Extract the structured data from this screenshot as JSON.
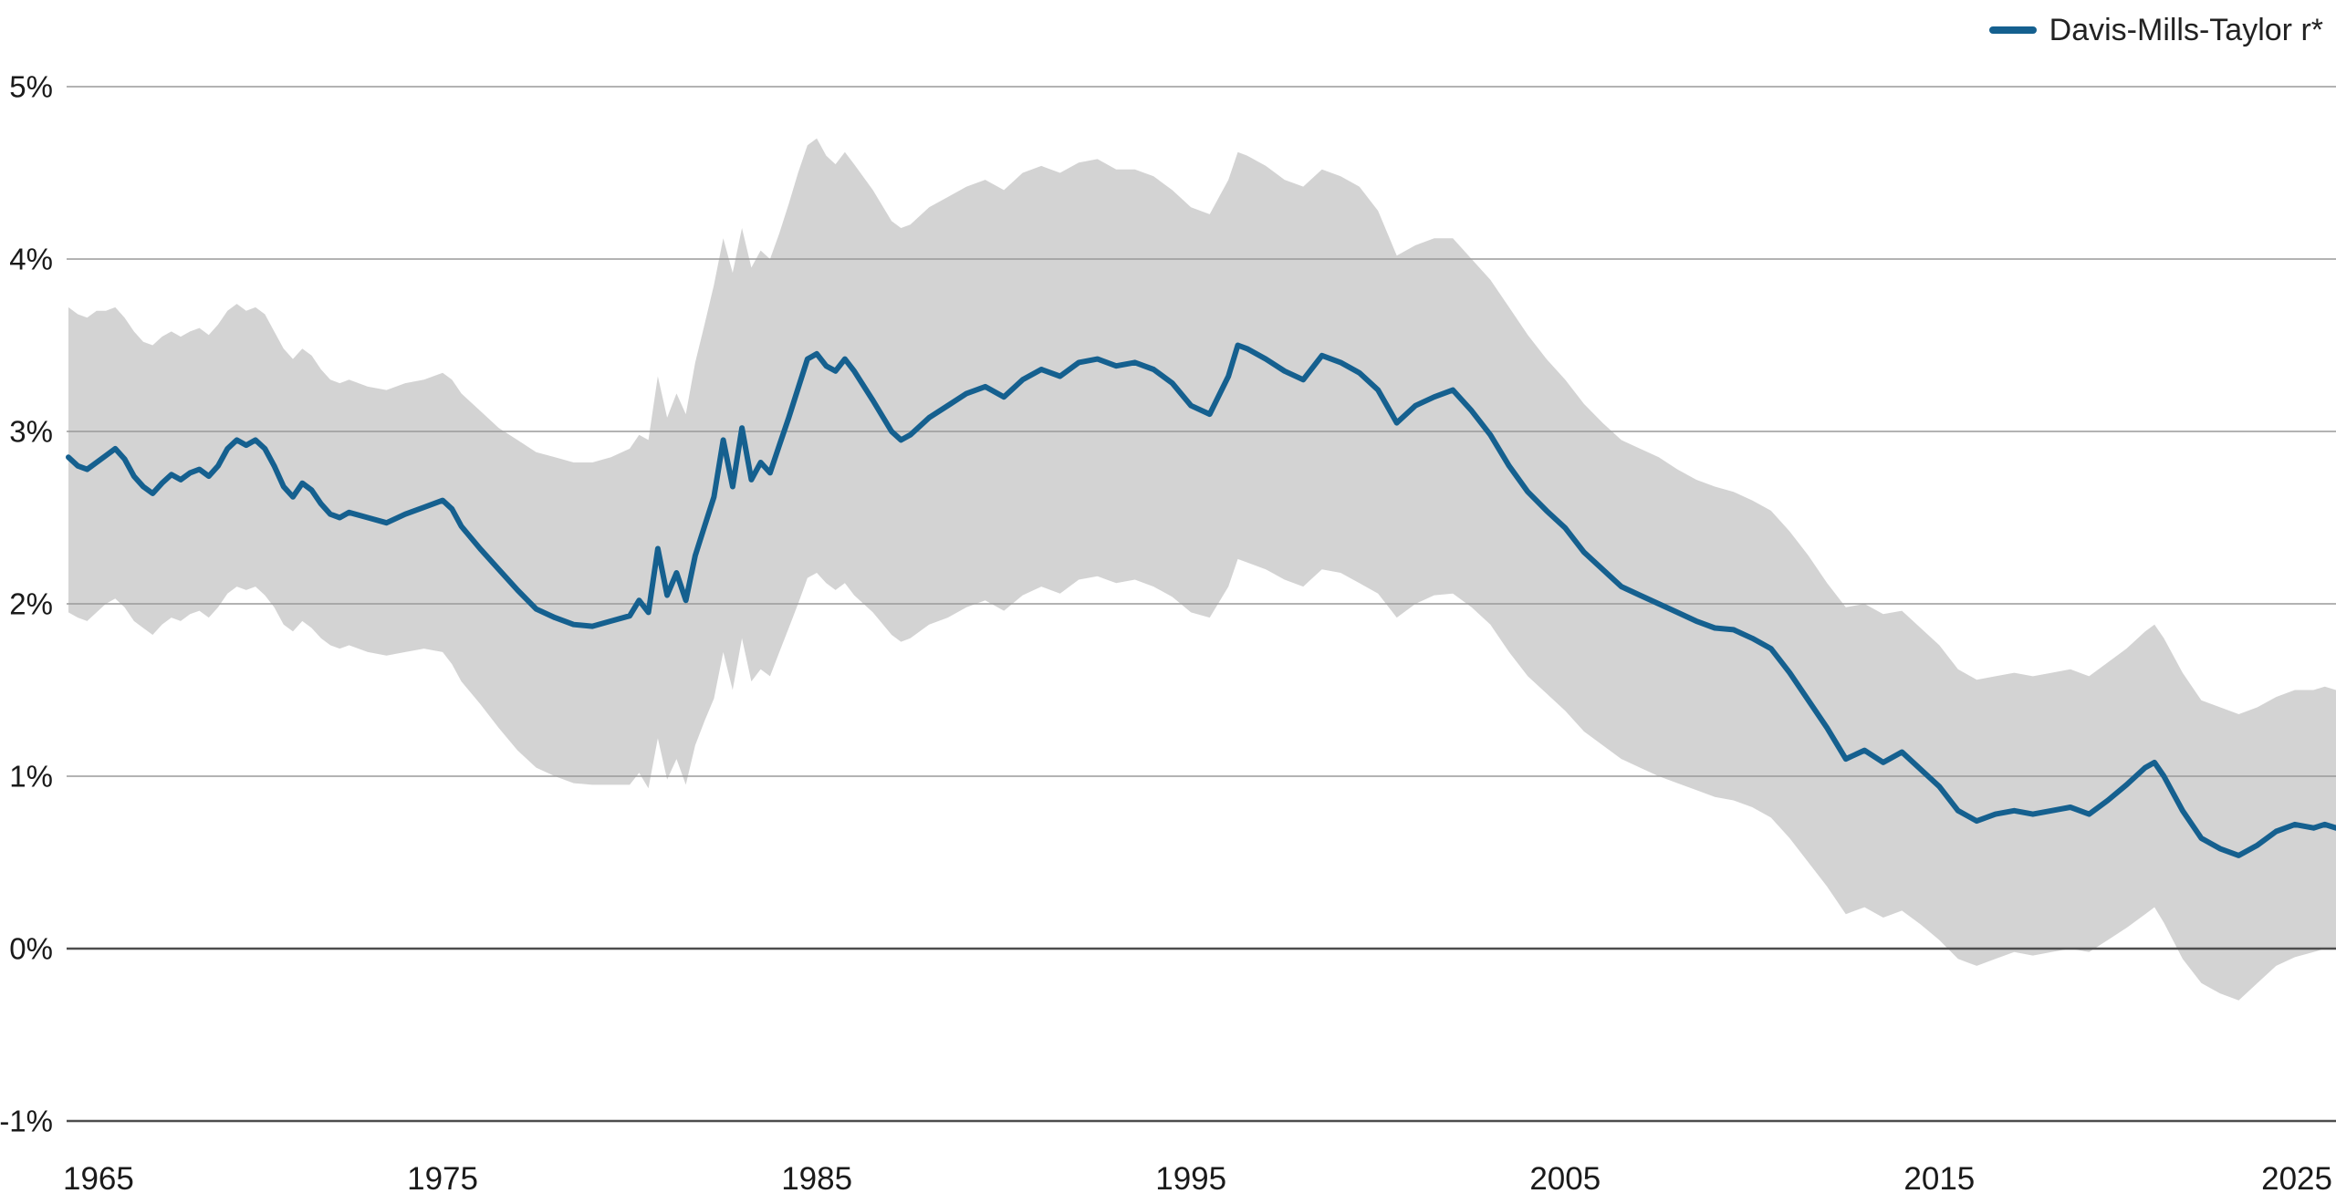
{
  "chart_data": {
    "type": "line",
    "title": "",
    "xlabel": "",
    "ylabel": "",
    "legend_position": "top-right",
    "grid": "horizontal",
    "legend": [
      {
        "label": "Davis-Mills-Taylor r*",
        "color": "#15608f"
      }
    ],
    "y_ticks": [
      "5%",
      "4%",
      "3%",
      "2%",
      "1%",
      "0%",
      "-1%"
    ],
    "y_tick_values": [
      5,
      4,
      3,
      2,
      1,
      0,
      -1
    ],
    "x_ticks": [
      1965,
      1975,
      1985,
      1995,
      2005,
      2015,
      2025
    ],
    "xlim": [
      1965,
      2025.6
    ],
    "ylim": [
      -1,
      5
    ],
    "band_color": "#d3d3d3",
    "band_name": "confidence-band",
    "series": [
      {
        "name": "Davis-Mills-Taylor r*",
        "color": "#15608f",
        "points_format": [
          "year",
          "value_pct",
          "band_lower_pct",
          "band_upper_pct"
        ],
        "points": [
          [
            1965.0,
            2.85,
            1.95,
            3.72
          ],
          [
            1965.25,
            2.8,
            1.92,
            3.68
          ],
          [
            1965.5,
            2.78,
            1.9,
            3.66
          ],
          [
            1965.75,
            2.82,
            1.95,
            3.7
          ],
          [
            1966.0,
            2.86,
            2.0,
            3.7
          ],
          [
            1966.25,
            2.9,
            2.03,
            3.72
          ],
          [
            1966.5,
            2.84,
            1.98,
            3.66
          ],
          [
            1966.75,
            2.74,
            1.9,
            3.58
          ],
          [
            1967.0,
            2.68,
            1.86,
            3.52
          ],
          [
            1967.25,
            2.64,
            1.82,
            3.5
          ],
          [
            1967.5,
            2.7,
            1.88,
            3.55
          ],
          [
            1967.75,
            2.75,
            1.92,
            3.58
          ],
          [
            1968.0,
            2.72,
            1.9,
            3.55
          ],
          [
            1968.25,
            2.76,
            1.94,
            3.58
          ],
          [
            1968.5,
            2.78,
            1.96,
            3.6
          ],
          [
            1968.75,
            2.74,
            1.92,
            3.56
          ],
          [
            1969.0,
            2.8,
            1.98,
            3.62
          ],
          [
            1969.25,
            2.9,
            2.06,
            3.7
          ],
          [
            1969.5,
            2.95,
            2.1,
            3.74
          ],
          [
            1969.75,
            2.92,
            2.08,
            3.7
          ],
          [
            1970.0,
            2.95,
            2.1,
            3.72
          ],
          [
            1970.25,
            2.9,
            2.05,
            3.68
          ],
          [
            1970.5,
            2.8,
            1.98,
            3.58
          ],
          [
            1970.75,
            2.68,
            1.88,
            3.48
          ],
          [
            1971.0,
            2.62,
            1.84,
            3.42
          ],
          [
            1971.25,
            2.7,
            1.9,
            3.48
          ],
          [
            1971.5,
            2.66,
            1.86,
            3.44
          ],
          [
            1971.75,
            2.58,
            1.8,
            3.36
          ],
          [
            1972.0,
            2.52,
            1.76,
            3.3
          ],
          [
            1972.25,
            2.5,
            1.74,
            3.28
          ],
          [
            1972.5,
            2.53,
            1.76,
            3.3
          ],
          [
            1973.0,
            2.5,
            1.72,
            3.26
          ],
          [
            1973.5,
            2.47,
            1.7,
            3.24
          ],
          [
            1974.0,
            2.52,
            1.72,
            3.28
          ],
          [
            1974.5,
            2.56,
            1.74,
            3.3
          ],
          [
            1975.0,
            2.6,
            1.72,
            3.34
          ],
          [
            1975.25,
            2.55,
            1.65,
            3.3
          ],
          [
            1975.5,
            2.45,
            1.55,
            3.22
          ],
          [
            1976.0,
            2.32,
            1.42,
            3.12
          ],
          [
            1976.5,
            2.2,
            1.28,
            3.02
          ],
          [
            1977.0,
            2.08,
            1.15,
            2.95
          ],
          [
            1977.5,
            1.97,
            1.05,
            2.88
          ],
          [
            1978.0,
            1.92,
            1.0,
            2.85
          ],
          [
            1978.5,
            1.88,
            0.96,
            2.82
          ],
          [
            1979.0,
            1.87,
            0.95,
            2.82
          ],
          [
            1979.5,
            1.9,
            0.95,
            2.85
          ],
          [
            1980.0,
            1.93,
            0.95,
            2.9
          ],
          [
            1980.25,
            2.02,
            1.02,
            2.98
          ],
          [
            1980.5,
            1.95,
            0.93,
            2.95
          ],
          [
            1980.75,
            2.32,
            1.22,
            3.32
          ],
          [
            1981.0,
            2.05,
            0.98,
            3.08
          ],
          [
            1981.25,
            2.18,
            1.1,
            3.22
          ],
          [
            1981.5,
            2.02,
            0.95,
            3.1
          ],
          [
            1981.75,
            2.28,
            1.18,
            3.4
          ],
          [
            1982.0,
            2.45,
            1.32,
            3.62
          ],
          [
            1982.25,
            2.62,
            1.45,
            3.85
          ],
          [
            1982.5,
            2.95,
            1.72,
            4.12
          ],
          [
            1982.75,
            2.68,
            1.5,
            3.92
          ],
          [
            1983.0,
            3.02,
            1.8,
            4.18
          ],
          [
            1983.25,
            2.72,
            1.55,
            3.95
          ],
          [
            1983.5,
            2.82,
            1.62,
            4.05
          ],
          [
            1983.75,
            2.76,
            1.58,
            4.0
          ],
          [
            1984.0,
            2.92,
            1.72,
            4.15
          ],
          [
            1984.25,
            3.08,
            1.86,
            4.32
          ],
          [
            1984.5,
            3.25,
            2.0,
            4.5
          ],
          [
            1984.75,
            3.42,
            2.15,
            4.66
          ],
          [
            1985.0,
            3.45,
            2.18,
            4.7
          ],
          [
            1985.25,
            3.38,
            2.12,
            4.6
          ],
          [
            1985.5,
            3.35,
            2.08,
            4.55
          ],
          [
            1985.75,
            3.42,
            2.12,
            4.62
          ],
          [
            1986.0,
            3.35,
            2.05,
            4.55
          ],
          [
            1986.5,
            3.18,
            1.95,
            4.4
          ],
          [
            1987.0,
            3.0,
            1.82,
            4.22
          ],
          [
            1987.25,
            2.95,
            1.78,
            4.18
          ],
          [
            1987.5,
            2.98,
            1.8,
            4.2
          ],
          [
            1988.0,
            3.08,
            1.88,
            4.3
          ],
          [
            1988.5,
            3.15,
            1.92,
            4.36
          ],
          [
            1989.0,
            3.22,
            1.98,
            4.42
          ],
          [
            1989.5,
            3.26,
            2.02,
            4.46
          ],
          [
            1990.0,
            3.2,
            1.96,
            4.4
          ],
          [
            1990.5,
            3.3,
            2.05,
            4.5
          ],
          [
            1991.0,
            3.36,
            2.1,
            4.54
          ],
          [
            1991.5,
            3.32,
            2.06,
            4.5
          ],
          [
            1992.0,
            3.4,
            2.14,
            4.56
          ],
          [
            1992.5,
            3.42,
            2.16,
            4.58
          ],
          [
            1993.0,
            3.38,
            2.12,
            4.52
          ],
          [
            1993.5,
            3.4,
            2.14,
            4.52
          ],
          [
            1994.0,
            3.36,
            2.1,
            4.48
          ],
          [
            1994.5,
            3.28,
            2.04,
            4.4
          ],
          [
            1995.0,
            3.15,
            1.95,
            4.3
          ],
          [
            1995.5,
            3.1,
            1.92,
            4.26
          ],
          [
            1996.0,
            3.32,
            2.1,
            4.46
          ],
          [
            1996.25,
            3.5,
            2.26,
            4.62
          ],
          [
            1996.5,
            3.48,
            2.24,
            4.6
          ],
          [
            1997.0,
            3.42,
            2.2,
            4.54
          ],
          [
            1997.5,
            3.35,
            2.14,
            4.46
          ],
          [
            1998.0,
            3.3,
            2.1,
            4.42
          ],
          [
            1998.5,
            3.44,
            2.2,
            4.52
          ],
          [
            1999.0,
            3.4,
            2.18,
            4.48
          ],
          [
            1999.5,
            3.34,
            2.12,
            4.42
          ],
          [
            2000.0,
            3.24,
            2.06,
            4.28
          ],
          [
            2000.5,
            3.05,
            1.92,
            4.02
          ],
          [
            2001.0,
            3.15,
            2.0,
            4.08
          ],
          [
            2001.5,
            3.2,
            2.05,
            4.12
          ],
          [
            2002.0,
            3.24,
            2.06,
            4.12
          ],
          [
            2002.5,
            3.12,
            1.98,
            4.0
          ],
          [
            2003.0,
            2.98,
            1.88,
            3.88
          ],
          [
            2003.5,
            2.8,
            1.72,
            3.72
          ],
          [
            2004.0,
            2.65,
            1.58,
            3.56
          ],
          [
            2004.5,
            2.54,
            1.48,
            3.42
          ],
          [
            2005.0,
            2.44,
            1.38,
            3.3
          ],
          [
            2005.5,
            2.3,
            1.26,
            3.16
          ],
          [
            2006.0,
            2.2,
            1.18,
            3.05
          ],
          [
            2006.5,
            2.1,
            1.1,
            2.95
          ],
          [
            2007.0,
            2.05,
            1.05,
            2.9
          ],
          [
            2007.5,
            2.0,
            1.0,
            2.85
          ],
          [
            2008.0,
            1.95,
            0.96,
            2.78
          ],
          [
            2008.5,
            1.9,
            0.92,
            2.72
          ],
          [
            2009.0,
            1.86,
            0.88,
            2.68
          ],
          [
            2009.5,
            1.85,
            0.86,
            2.65
          ],
          [
            2010.0,
            1.8,
            0.82,
            2.6
          ],
          [
            2010.5,
            1.74,
            0.76,
            2.54
          ],
          [
            2011.0,
            1.6,
            0.64,
            2.42
          ],
          [
            2011.5,
            1.44,
            0.5,
            2.28
          ],
          [
            2012.0,
            1.28,
            0.36,
            2.12
          ],
          [
            2012.5,
            1.1,
            0.2,
            1.98
          ],
          [
            2013.0,
            1.15,
            0.24,
            2.0
          ],
          [
            2013.5,
            1.08,
            0.18,
            1.94
          ],
          [
            2014.0,
            1.14,
            0.22,
            1.96
          ],
          [
            2014.5,
            1.04,
            0.14,
            1.86
          ],
          [
            2015.0,
            0.94,
            0.05,
            1.76
          ],
          [
            2015.5,
            0.8,
            -0.06,
            1.62
          ],
          [
            2016.0,
            0.74,
            -0.1,
            1.56
          ],
          [
            2016.5,
            0.78,
            -0.06,
            1.58
          ],
          [
            2017.0,
            0.8,
            -0.02,
            1.6
          ],
          [
            2017.5,
            0.78,
            -0.04,
            1.58
          ],
          [
            2018.0,
            0.8,
            -0.02,
            1.6
          ],
          [
            2018.5,
            0.82,
            0.0,
            1.62
          ],
          [
            2019.0,
            0.78,
            -0.02,
            1.58
          ],
          [
            2019.5,
            0.86,
            0.05,
            1.66
          ],
          [
            2020.0,
            0.95,
            0.12,
            1.74
          ],
          [
            2020.5,
            1.05,
            0.2,
            1.84
          ],
          [
            2020.75,
            1.08,
            0.24,
            1.88
          ],
          [
            2021.0,
            1.0,
            0.15,
            1.8
          ],
          [
            2021.5,
            0.8,
            -0.06,
            1.6
          ],
          [
            2022.0,
            0.64,
            -0.2,
            1.44
          ],
          [
            2022.5,
            0.58,
            -0.26,
            1.4
          ],
          [
            2023.0,
            0.54,
            -0.3,
            1.36
          ],
          [
            2023.5,
            0.6,
            -0.2,
            1.4
          ],
          [
            2024.0,
            0.68,
            -0.1,
            1.46
          ],
          [
            2024.5,
            0.72,
            -0.05,
            1.5
          ],
          [
            2025.0,
            0.7,
            -0.02,
            1.5
          ],
          [
            2025.3,
            0.72,
            0.0,
            1.52
          ],
          [
            2025.6,
            0.7,
            0.0,
            1.5
          ]
        ]
      }
    ],
    "colors": {
      "line": "#15608f",
      "band": "#d3d3d3",
      "gridline": "#9a9a9a",
      "gridline_dark": "#4d4d4d",
      "tick_text": "#1a1a1a",
      "background": "#ffffff"
    }
  }
}
